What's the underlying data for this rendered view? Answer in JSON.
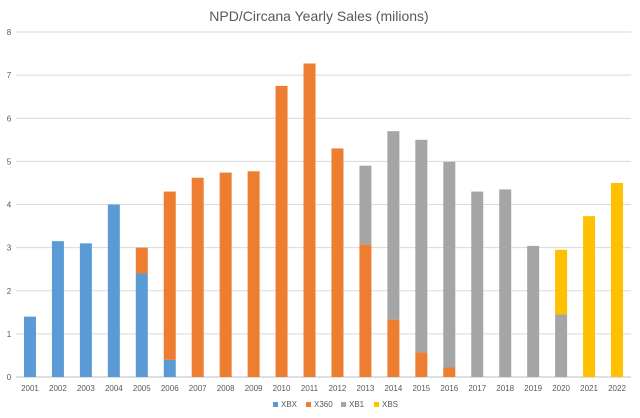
{
  "chart_data": {
    "type": "bar",
    "stacked": true,
    "title": "NPD/Circana Yearly Sales (milions)",
    "xlabel": "",
    "ylabel": "",
    "ylim": [
      0,
      8
    ],
    "yticks": [
      0,
      1,
      2,
      3,
      4,
      5,
      6,
      7,
      8
    ],
    "grid": true,
    "legend_position": "bottom",
    "categories": [
      "2001",
      "2002",
      "2003",
      "2004",
      "2005",
      "2006",
      "2007",
      "2008",
      "2009",
      "2010",
      "2011",
      "2012",
      "2013",
      "2014",
      "2015",
      "2016",
      "2017",
      "2018",
      "2019",
      "2020",
      "2021",
      "2022"
    ],
    "series": [
      {
        "name": "XBX",
        "color": "#5b9bd5",
        "values": [
          1.4,
          3.15,
          3.1,
          4.0,
          2.4,
          0.4,
          0,
          0,
          0,
          0,
          0,
          0,
          0,
          0,
          0,
          0,
          0,
          0,
          0,
          0,
          0,
          0
        ]
      },
      {
        "name": "X360",
        "color": "#ed7d31",
        "values": [
          0,
          0,
          0,
          0,
          0.6,
          3.9,
          4.62,
          4.74,
          4.77,
          6.75,
          7.27,
          5.3,
          3.07,
          1.33,
          0.57,
          0.22,
          0,
          0,
          0,
          0,
          0,
          0
        ]
      },
      {
        "name": "XB1",
        "color": "#a5a5a5",
        "values": [
          0,
          0,
          0,
          0,
          0,
          0,
          0,
          0,
          0,
          0,
          0,
          0,
          1.83,
          4.37,
          4.93,
          4.77,
          4.3,
          4.35,
          3.04,
          1.45,
          0,
          0
        ]
      },
      {
        "name": "XBS",
        "color": "#ffc000",
        "values": [
          0,
          0,
          0,
          0,
          0,
          0,
          0,
          0,
          0,
          0,
          0,
          0,
          0,
          0,
          0,
          0,
          0,
          0,
          0,
          1.5,
          3.73,
          4.5
        ]
      }
    ]
  }
}
